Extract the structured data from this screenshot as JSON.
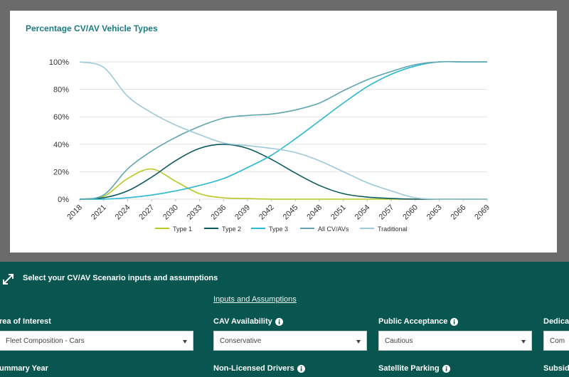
{
  "chart_data": {
    "type": "line",
    "title": "Percentage CV/AV Vehicle Types",
    "x": [
      2018,
      2021,
      2024,
      2027,
      2030,
      2033,
      2036,
      2039,
      2042,
      2045,
      2048,
      2051,
      2054,
      2057,
      2060,
      2063,
      2066,
      2069
    ],
    "xlim": [
      2018,
      2069
    ],
    "xticks": [
      2018,
      2021,
      2024,
      2027,
      2030,
      2033,
      2036,
      2039,
      2042,
      2045,
      2048,
      2051,
      2054,
      2057,
      2060,
      2063,
      2066,
      2069
    ],
    "ylim": [
      0,
      100
    ],
    "yticks": [
      {
        "value": 0,
        "label": "0%"
      },
      {
        "value": 20,
        "label": "20%"
      },
      {
        "value": 40,
        "label": "40%"
      },
      {
        "value": 60,
        "label": "60%"
      },
      {
        "value": 80,
        "label": "80%"
      },
      {
        "value": 100,
        "label": "100%"
      }
    ],
    "grid": true,
    "legend": "bottom",
    "series": [
      {
        "name": "Type 1",
        "color": "#b8c925",
        "values": [
          0,
          2,
          15,
          22,
          13,
          4,
          1,
          0.5,
          0,
          0,
          0,
          0,
          0,
          0,
          0,
          0,
          0,
          0
        ]
      },
      {
        "name": "Type 2",
        "color": "#0d5a5e",
        "values": [
          0,
          1,
          6,
          16,
          28,
          37,
          40,
          37,
          29,
          19,
          10,
          4,
          1.5,
          0.5,
          0,
          0,
          0,
          0
        ]
      },
      {
        "name": "Type 3",
        "color": "#2bb8d3",
        "values": [
          0,
          0,
          1,
          3,
          6,
          10,
          15,
          23,
          32,
          44,
          57,
          70,
          82,
          91,
          97,
          100,
          100,
          100
        ]
      },
      {
        "name": "All CV/AVs",
        "color": "#5ea5ad",
        "values": [
          0,
          3,
          22,
          35,
          45,
          53,
          59,
          61,
          62,
          65,
          70,
          79,
          87,
          93,
          98,
          100,
          100,
          100
        ]
      },
      {
        "name": "Traditional",
        "color": "#9cc9d8",
        "values": [
          100,
          96,
          75,
          63,
          54,
          47,
          41,
          39,
          37,
          34,
          28,
          20,
          12,
          6,
          1,
          0,
          0,
          0
        ]
      }
    ]
  },
  "panel": {
    "title": "Select your CV/AV Scenario inputs and assumptions",
    "link": "Inputs and Assumptions",
    "fields": [
      {
        "label": "rea of Interest",
        "value": "Fleet Composition - Cars",
        "info": false
      },
      {
        "label": "CAV Availability",
        "value": "Conservative",
        "info": true
      },
      {
        "label": "Public Acceptance",
        "value": "Cautious",
        "info": true
      },
      {
        "label": "Dedica",
        "value": "Com",
        "info": false
      },
      {
        "label": "ummary Year",
        "info": false
      },
      {
        "label": "Non-Licensed Drivers",
        "info": true
      },
      {
        "label": "Satellite Parking",
        "info": true
      },
      {
        "label": "Subsid",
        "info": false
      }
    ]
  }
}
